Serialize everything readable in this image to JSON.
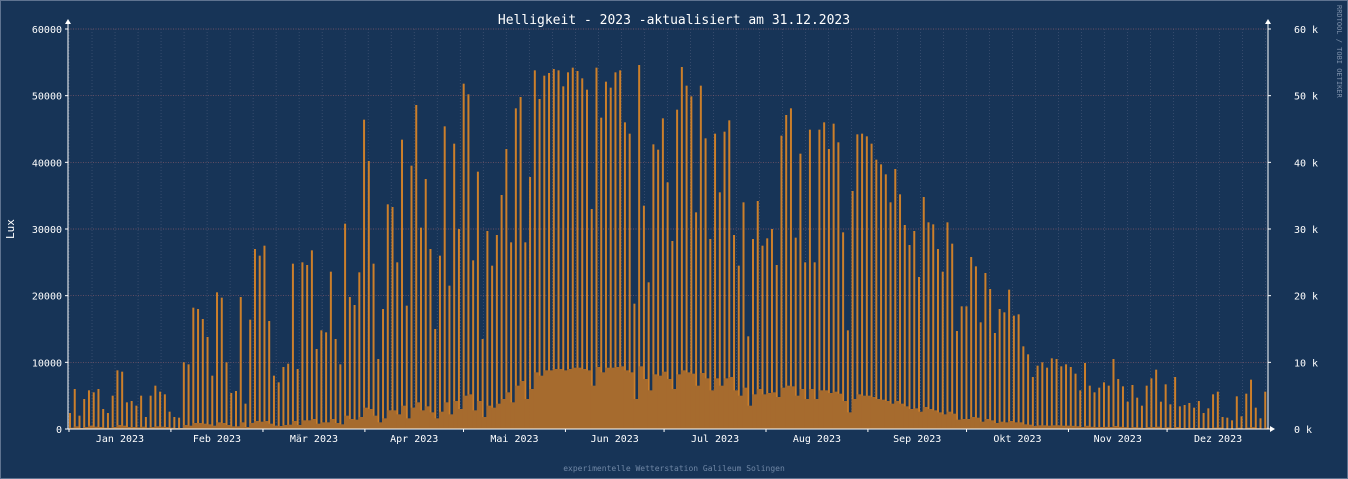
{
  "chart_data": {
    "type": "bar",
    "title": "Helligkeit - 2023 -aktualisiert am 31.12.2023",
    "ylabel": "Lux",
    "ylim": [
      0,
      60000
    ],
    "y_ticks_left": [
      "0",
      "10000",
      "20000",
      "30000",
      "40000",
      "50000",
      "60000"
    ],
    "y_ticks_right": [
      "0 k",
      "10 k",
      "20 k",
      "30 k",
      "40 k",
      "50 k",
      "60 k"
    ],
    "x_labels": [
      "Jan 2023",
      "Feb 2023",
      "Mär 2023",
      "Apr 2023",
      "Mai 2023",
      "Jun 2023",
      "Jul 2023",
      "Aug 2023",
      "Sep 2023",
      "Okt 2023",
      "Nov 2023",
      "Dez 2023"
    ],
    "grid": true,
    "series": [
      {
        "role": "max",
        "color": "#cc7f2a",
        "values": [
          2400,
          6000,
          2000,
          4500,
          5800,
          5500,
          6000,
          3000,
          2400,
          5000,
          8800,
          8600,
          4000,
          4200,
          3500,
          5000,
          1800,
          5000,
          6500,
          5600,
          5200,
          2600,
          1800,
          1700,
          10000,
          9700,
          18200,
          18000,
          16500,
          13800,
          8000,
          20500,
          19700,
          10000,
          5400,
          5700,
          19800,
          3800,
          16400,
          27000,
          26000,
          27500,
          16200,
          8000,
          7000,
          9300,
          9800,
          24800,
          9000,
          25000,
          24600,
          26800,
          12000,
          14800,
          14500,
          23600,
          13500,
          9700,
          30800,
          19800,
          18600,
          23500,
          46400,
          40200,
          24800,
          10500,
          18000,
          33700,
          33300,
          25000,
          43400,
          18500,
          39500,
          48600,
          30200,
          37500,
          27000,
          15000,
          26000,
          45400,
          21500,
          42800,
          30000,
          51800,
          50200,
          25300,
          38600,
          13500,
          29700,
          24500,
          29100,
          35100,
          42000,
          28000,
          48100,
          49800,
          28000,
          37800,
          53800,
          49500,
          53000,
          53400,
          54000,
          53800,
          51400,
          53500,
          54200,
          53700,
          52600,
          50900,
          33000,
          54200,
          46700,
          52100,
          51200,
          53500,
          53800,
          46000,
          44300,
          18800,
          54600,
          33500,
          22000,
          42700,
          41900,
          46600,
          37000,
          28200,
          47900,
          54300,
          51500,
          49900,
          32500,
          51500,
          43600,
          28500,
          44300,
          35500,
          44600,
          46300,
          29100,
          24500,
          34000,
          13900,
          28500,
          34200,
          27500,
          28600,
          30000,
          24600,
          44000,
          47100,
          48100,
          28700,
          41300,
          25000,
          44900,
          25000,
          44900,
          46000,
          42000,
          45800,
          43000,
          29500,
          14800,
          35700,
          44200,
          44300,
          43900,
          42800,
          40400,
          39700,
          38200,
          34000,
          39000,
          35200,
          30600,
          27600,
          29700,
          22800,
          34800,
          31000,
          30700,
          27000,
          23600,
          31000,
          27800,
          14700,
          18400,
          18400,
          25800,
          24400,
          16000,
          23400,
          21000,
          14400,
          18000,
          17500,
          20900,
          17000,
          17200,
          12400,
          11200,
          7800,
          9500,
          10000,
          9200,
          10600,
          10500,
          9400,
          9700,
          9300,
          8300,
          5800,
          9900,
          6500,
          5500,
          6200,
          7000,
          6500,
          10500,
          7500,
          6400,
          4100,
          6600,
          4700,
          3500,
          6500,
          7600,
          8900,
          4100,
          6700,
          3700,
          7800,
          3400,
          3600,
          3900,
          3200,
          4200,
          2400,
          3100,
          5200,
          5600,
          1800,
          1700,
          1300,
          4900,
          1900,
          5300,
          7400,
          3200,
          1600,
          5600
        ]
      },
      {
        "role": "mean",
        "color": "#a66b2e",
        "values": [
          200,
          400,
          150,
          300,
          500,
          350,
          300,
          200,
          180,
          300,
          600,
          500,
          300,
          300,
          250,
          350,
          200,
          300,
          400,
          350,
          300,
          200,
          150,
          150,
          600,
          500,
          900,
          900,
          800,
          700,
          500,
          1000,
          900,
          600,
          400,
          400,
          1000,
          300,
          900,
          1200,
          1100,
          1200,
          800,
          500,
          450,
          600,
          650,
          1200,
          600,
          1300,
          1300,
          1500,
          800,
          1000,
          1000,
          1500,
          900,
          700,
          2000,
          1500,
          1400,
          1800,
          3200,
          3000,
          2000,
          1000,
          1600,
          2800,
          2800,
          2200,
          3500,
          1600,
          3200,
          4000,
          2800,
          3400,
          2500,
          1600,
          2600,
          4000,
          2200,
          4200,
          3000,
          5000,
          5200,
          2800,
          4200,
          1800,
          3500,
          3200,
          3800,
          4500,
          5500,
          4000,
          6500,
          7200,
          4500,
          6000,
          8500,
          8000,
          8800,
          8800,
          9000,
          9000,
          8800,
          9000,
          9200,
          9200,
          9000,
          8800,
          6500,
          9300,
          8500,
          9200,
          9200,
          9300,
          9400,
          8800,
          8500,
          4500,
          9400,
          7500,
          5800,
          8200,
          8000,
          8600,
          7500,
          6000,
          8200,
          8800,
          8500,
          8300,
          6500,
          8400,
          7600,
          5800,
          7600,
          6500,
          7600,
          7800,
          5800,
          5000,
          6200,
          3500,
          5200,
          6000,
          5200,
          5400,
          5500,
          4800,
          6200,
          6500,
          6400,
          5000,
          6000,
          4500,
          6000,
          4500,
          5800,
          5800,
          5400,
          5600,
          5300,
          4200,
          2500,
          4500,
          5200,
          5000,
          5000,
          4800,
          4500,
          4400,
          4200,
          3800,
          4200,
          3800,
          3400,
          3000,
          3100,
          2600,
          3300,
          3000,
          2800,
          2500,
          2200,
          2600,
          2300,
          1400,
          1500,
          1500,
          1800,
          1700,
          1100,
          1500,
          1300,
          900,
          1100,
          1000,
          1200,
          1000,
          1000,
          700,
          650,
          450,
          550,
          550,
          500,
          550,
          550,
          500,
          500,
          480,
          420,
          300,
          480,
          330,
          280,
          300,
          320,
          300,
          450,
          330,
          280,
          200,
          280,
          220,
          170,
          280,
          300,
          350,
          180,
          260,
          160,
          300,
          150,
          150,
          160,
          140,
          160,
          110,
          130,
          200,
          220,
          90,
          80,
          70,
          190,
          90,
          200,
          280,
          130,
          80,
          200
        ]
      }
    ]
  },
  "footer_text": "experimentelle Wetterstation Galileum Solingen",
  "watermark_text": "RRDTOOL / TOBI OETIKER",
  "colors": {
    "background": "#173457",
    "grid": "#8a5a6a",
    "text": "#ffffff"
  }
}
